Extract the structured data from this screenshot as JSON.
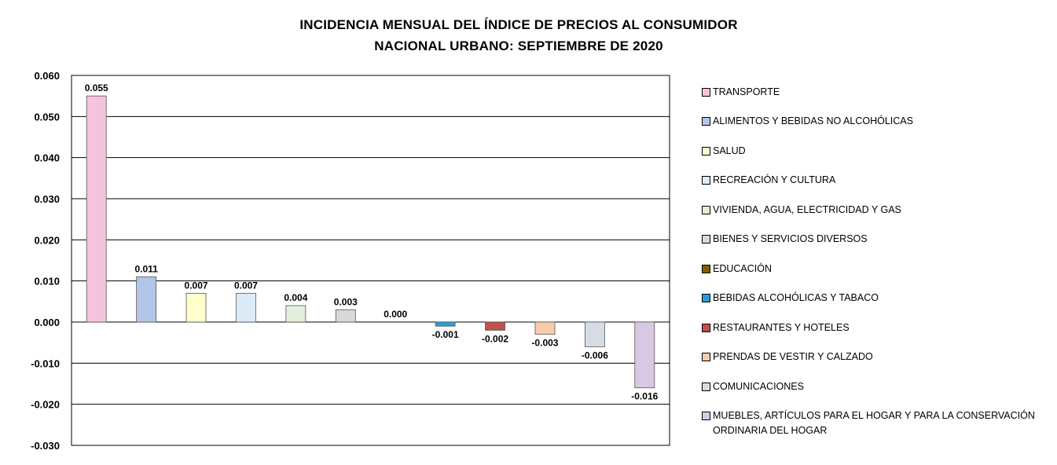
{
  "title_line1": "INCIDENCIA MENSUAL  DEL ÍNDICE DE PRECIOS AL CONSUMIDOR",
  "title_line2": "NACIONAL URBANO: SEPTIEMBRE DE 2020",
  "chart_data": {
    "type": "bar",
    "title": "INCIDENCIA MENSUAL  DEL ÍNDICE DE PRECIOS AL CONSUMIDOR NACIONAL URBANO: SEPTIEMBRE DE 2020",
    "xlabel": "",
    "ylabel": "",
    "ylim": [
      -0.03,
      0.06
    ],
    "yticks": [
      "0.060",
      "0.050",
      "0.040",
      "0.030",
      "0.020",
      "0.010",
      "0.000",
      "-0.010",
      "-0.020",
      "-0.030"
    ],
    "grid": true,
    "legend_position": "right",
    "categories": [
      "TRANSPORTE",
      "ALIMENTOS Y BEBIDAS NO ALCOHÓLICAS",
      "SALUD",
      "RECREACIÓN Y CULTURA",
      "VIVIENDA, AGUA, ELECTRICIDAD Y GAS",
      "BIENES Y SERVICIOS DIVERSOS",
      "EDUCACIÓN",
      "BEBIDAS ALCOHÓLICAS Y TABACO",
      "RESTAURANTES Y HOTELES",
      "PRENDAS DE VESTIR Y CALZADO",
      "COMUNICACIONES",
      "MUEBLES, ARTÍCULOS PARA EL HOGAR Y PARA LA CONSERVACIÓN ORDINARIA DEL HOGAR"
    ],
    "values": [
      0.055,
      0.011,
      0.007,
      0.007,
      0.004,
      0.003,
      0.0,
      -0.001,
      -0.002,
      -0.003,
      -0.006,
      -0.016
    ],
    "value_labels": [
      "0.055",
      "0.011",
      "0.007",
      "0.007",
      "0.004",
      "0.003",
      "0.000",
      "-0.001",
      "-0.002",
      "-0.003",
      "-0.006",
      "-0.016"
    ],
    "colors": [
      "#F6C3DD",
      "#B4C6E7",
      "#FFFFCC",
      "#DDEBF7",
      "#E2EFDA",
      "#D9D9D9",
      "#806000",
      "#2E9BD6",
      "#C0504D",
      "#F8CBAD",
      "#D6DCE4",
      "#D9C8E4"
    ]
  }
}
